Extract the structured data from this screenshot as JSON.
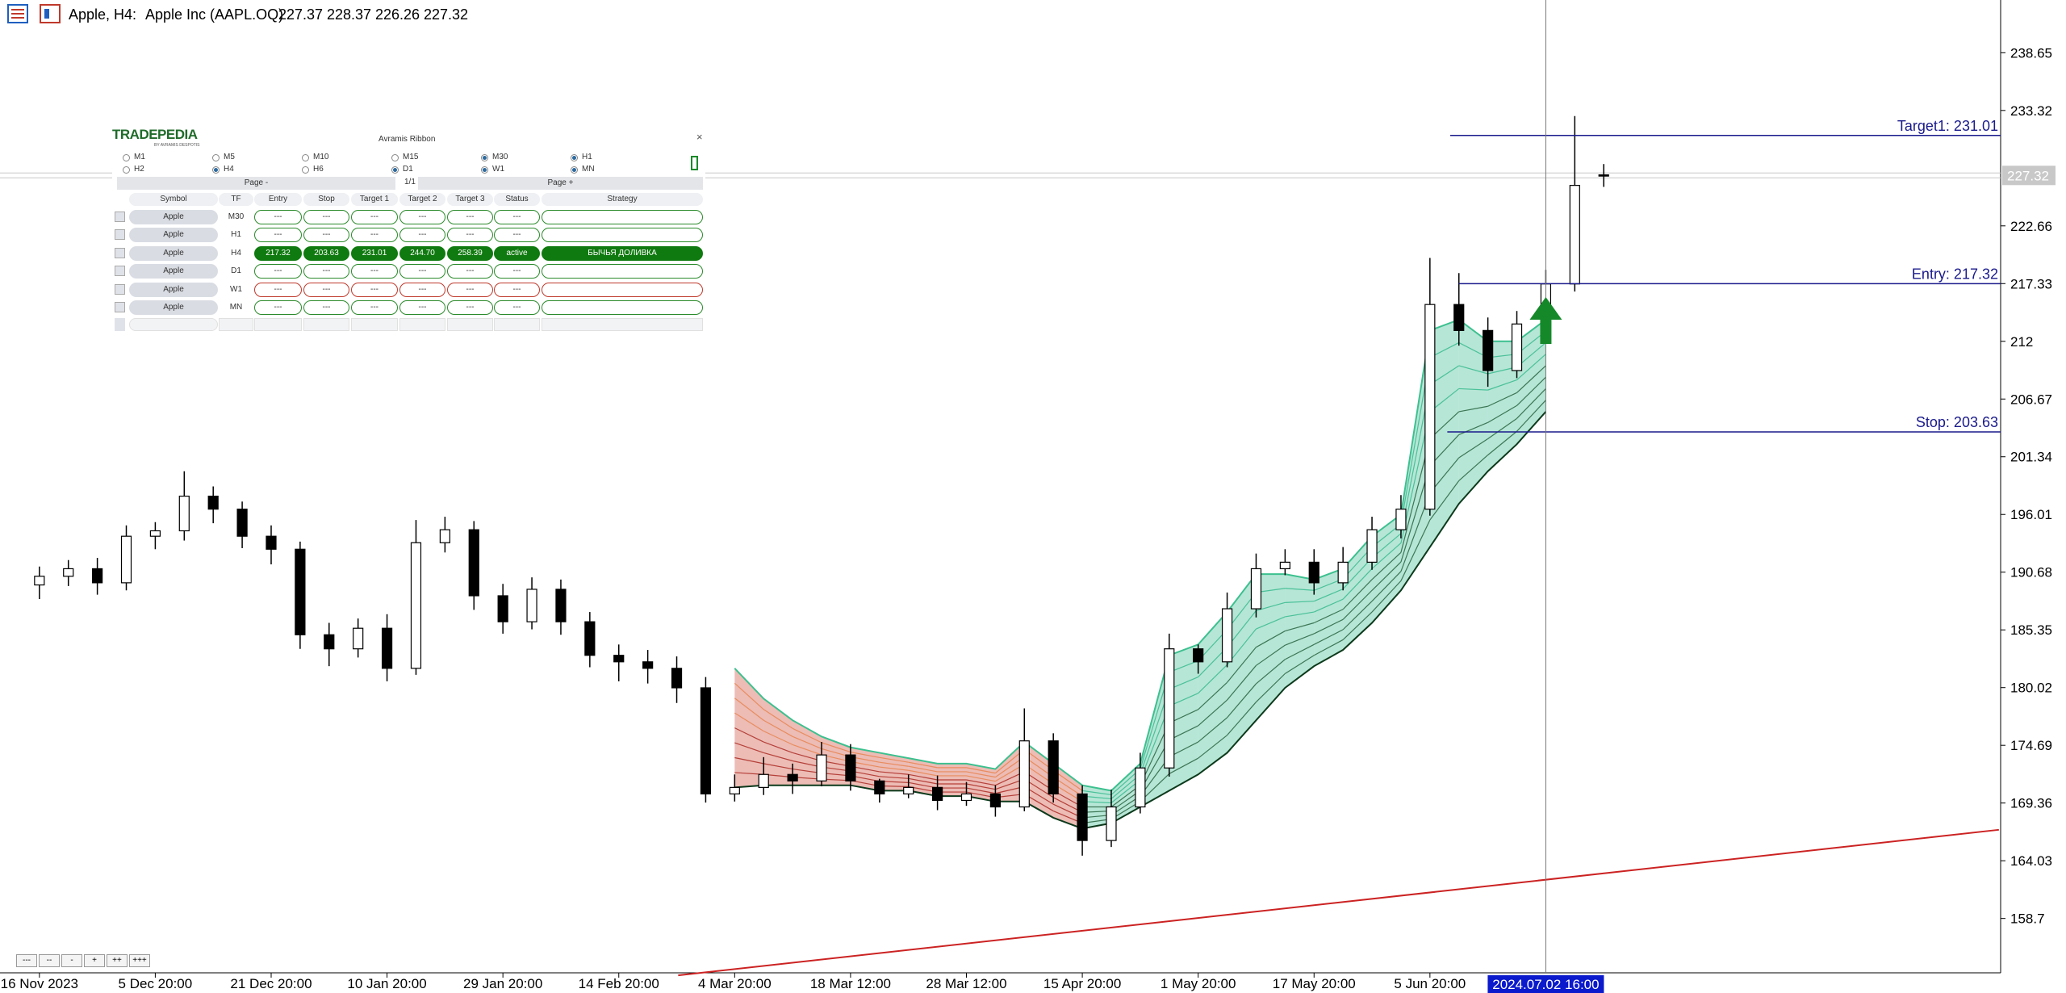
{
  "header": {
    "symbol": "Apple, H4:",
    "name": "Apple Inc (AAPL.OQ)",
    "ohlc": [
      "227.37",
      "228.37",
      "226.26",
      "227.32"
    ]
  },
  "zoom_buttons": [
    "---",
    "--",
    "-",
    "+",
    "++",
    "+++"
  ],
  "panel": {
    "logo": "TRADEPEDIA",
    "logo_sub": "BY AVRAMIS DESPOTIS",
    "title": "Avramis Ribbon",
    "close": "×",
    "timeframes": [
      {
        "label": "M1",
        "checked": false
      },
      {
        "label": "M5",
        "checked": false
      },
      {
        "label": "M10",
        "checked": false
      },
      {
        "label": "M15",
        "checked": false
      },
      {
        "label": "M30",
        "checked": true
      },
      {
        "label": "H1",
        "checked": true
      },
      {
        "label": "H2",
        "checked": false
      },
      {
        "label": "H4",
        "checked": true
      },
      {
        "label": "H6",
        "checked": false
      },
      {
        "label": "D1",
        "checked": true
      },
      {
        "label": "W1",
        "checked": true
      },
      {
        "label": "MN",
        "checked": true
      }
    ],
    "page_prev": "Page -",
    "page": "1/1",
    "page_next": "Page +",
    "columns": [
      "Symbol",
      "TF",
      "Entry",
      "Stop",
      "Target 1",
      "Target 2",
      "Target 3",
      "Status",
      "Strategy"
    ],
    "rows": [
      {
        "cells": [
          "Apple",
          "M30",
          "---",
          "---",
          "---",
          "---",
          "---",
          "---"
        ],
        "color": "#2a8a2a",
        "filled": false
      },
      {
        "cells": [
          "Apple",
          "H1",
          "---",
          "---",
          "---",
          "---",
          "---",
          "---"
        ],
        "color": "#2a8a2a",
        "filled": false
      },
      {
        "cells": [
          "Apple",
          "H4",
          "217.32",
          "203.63",
          "231.01",
          "244.70",
          "258.39",
          "active",
          "БЫЧЬЯ ДОЛИВКА"
        ],
        "color": "#0f7a0f",
        "filled": true
      },
      {
        "cells": [
          "Apple",
          "D1",
          "---",
          "---",
          "---",
          "---",
          "---",
          "---"
        ],
        "color": "#2a8a2a",
        "filled": false
      },
      {
        "cells": [
          "Apple",
          "W1",
          "---",
          "---",
          "---",
          "---",
          "---",
          "---"
        ],
        "color": "#c0392b",
        "filled": false
      },
      {
        "cells": [
          "Apple",
          "MN",
          "---",
          "---",
          "---",
          "---",
          "---",
          "---"
        ],
        "color": "#2a8a2a",
        "filled": false
      }
    ]
  },
  "chart_data": {
    "type": "candlestick",
    "x": [
      0,
      1,
      2,
      3,
      4,
      5,
      6,
      7,
      8,
      9,
      10,
      11,
      12,
      13,
      14,
      15,
      16,
      17,
      18,
      19,
      20,
      21,
      22,
      23,
      24,
      25,
      26,
      27,
      28,
      29,
      30,
      31,
      32,
      33,
      34,
      35,
      36,
      37,
      38,
      39,
      40,
      41,
      42,
      43,
      44,
      45,
      46,
      47,
      48,
      49,
      50,
      51,
      52,
      53,
      54
    ],
    "open": [
      189.5,
      190.3,
      191.0,
      189.7,
      194.0,
      194.5,
      197.7,
      196.5,
      194.0,
      192.8,
      184.9,
      183.6,
      185.5,
      181.8,
      193.4,
      194.6,
      188.5,
      186.1,
      189.1,
      186.1,
      183.0,
      182.4,
      181.8,
      180.0,
      170.2,
      170.8,
      172.0,
      171.4,
      173.8,
      171.4,
      170.2,
      170.8,
      169.6,
      170.2,
      169.0,
      175.1,
      170.2,
      165.9,
      169.0,
      172.6,
      183.6,
      182.4,
      187.3,
      191.0,
      191.6,
      189.7,
      191.6,
      194.6,
      196.5,
      215.4,
      213.0,
      209.3,
      213.6,
      217.3,
      227.37
    ],
    "high": [
      191.2,
      191.8,
      192.0,
      195.0,
      195.3,
      200.0,
      198.6,
      197.2,
      195.0,
      193.5,
      186.0,
      186.4,
      186.8,
      195.5,
      195.8,
      195.4,
      189.6,
      190.2,
      190.0,
      187.0,
      184.0,
      183.5,
      182.9,
      181.0,
      172.0,
      173.6,
      173.0,
      175.0,
      174.8,
      171.6,
      172.0,
      171.9,
      171.3,
      171.0,
      178.1,
      175.8,
      171.0,
      170.6,
      174.0,
      185.0,
      184.0,
      188.8,
      192.4,
      192.8,
      192.8,
      193.0,
      195.8,
      197.8,
      219.7,
      218.3,
      214.2,
      214.8,
      218.6,
      232.8,
      228.37
    ],
    "low": [
      188.2,
      189.4,
      188.6,
      189.0,
      192.8,
      193.6,
      195.2,
      192.9,
      191.4,
      183.6,
      182.0,
      182.8,
      180.6,
      181.2,
      192.5,
      187.2,
      185.0,
      185.4,
      184.9,
      181.9,
      180.6,
      180.4,
      178.6,
      169.4,
      169.5,
      170.1,
      170.2,
      170.9,
      170.5,
      169.4,
      169.8,
      168.7,
      169.1,
      168.1,
      168.6,
      169.4,
      164.5,
      165.3,
      168.4,
      171.8,
      181.3,
      181.9,
      186.5,
      190.4,
      188.6,
      189.0,
      190.9,
      193.8,
      195.9,
      211.6,
      207.8,
      208.6,
      212.0,
      216.6,
      226.26
    ],
    "close": [
      190.3,
      191.0,
      189.7,
      194.0,
      194.5,
      197.7,
      196.5,
      194.0,
      192.8,
      184.9,
      183.6,
      185.5,
      181.8,
      193.4,
      194.6,
      188.5,
      186.1,
      189.1,
      186.1,
      183.0,
      182.4,
      181.8,
      180.0,
      170.2,
      170.8,
      172.0,
      171.4,
      173.8,
      171.4,
      170.2,
      170.8,
      169.6,
      170.2,
      169.0,
      175.1,
      170.2,
      165.9,
      169.0,
      172.6,
      183.6,
      182.4,
      187.3,
      191.0,
      191.6,
      189.7,
      191.6,
      194.6,
      196.5,
      215.4,
      213.0,
      209.3,
      213.6,
      217.3,
      226.4,
      227.32
    ],
    "ribbon": {
      "upper": [
        null,
        null,
        null,
        null,
        null,
        null,
        null,
        null,
        null,
        null,
        null,
        null,
        null,
        null,
        null,
        null,
        null,
        null,
        null,
        null,
        null,
        null,
        null,
        null,
        181.8,
        179,
        177,
        175.5,
        174.5,
        174,
        173.5,
        173,
        173,
        172.5,
        175,
        173,
        171,
        170.5,
        173,
        183,
        184,
        187,
        190.5,
        190.5,
        190,
        191,
        194,
        196,
        213,
        214,
        212,
        212,
        214,
        null,
        null
      ],
      "lower": [
        null,
        null,
        null,
        null,
        null,
        null,
        null,
        null,
        null,
        null,
        null,
        null,
        null,
        null,
        null,
        null,
        null,
        null,
        null,
        null,
        null,
        null,
        null,
        null,
        170.8,
        171,
        171,
        171,
        171,
        170.5,
        170.5,
        170,
        170,
        169.5,
        169.5,
        168,
        167,
        167.5,
        169,
        170.5,
        172,
        174,
        177,
        180,
        182,
        183.5,
        186,
        189,
        193,
        197,
        200,
        202.5,
        205.5,
        null,
        null
      ],
      "colors": [
        "#c8402a",
        "#2fb88a"
      ]
    },
    "xlim": [
      -1.36,
      67.7
    ],
    "ylim": [
      153.68,
      243.52
    ],
    "yticks": [
      158.7,
      164.03,
      169.36,
      174.69,
      180.02,
      185.35,
      190.68,
      196.01,
      201.34,
      206.67,
      212.0,
      217.33,
      222.66,
      233.32,
      238.65
    ],
    "xticks": [
      {
        "value": 0,
        "label": "16 Nov 2023"
      },
      {
        "value": 4,
        "label": "5 Dec 20:00"
      },
      {
        "value": 8,
        "label": "21 Dec 20:00"
      },
      {
        "value": 12,
        "label": "10 Jan 20:00"
      },
      {
        "value": 16,
        "label": "29 Jan 20:00"
      },
      {
        "value": 20,
        "label": "14 Feb 20:00"
      },
      {
        "value": 24,
        "label": "4 Mar 20:00"
      },
      {
        "value": 28,
        "label": "18 Mar 12:00"
      },
      {
        "value": 32,
        "label": "28 Mar 12:00"
      },
      {
        "value": 36,
        "label": "15 Apr 20:00"
      },
      {
        "value": 40,
        "label": "1 May 20:00"
      },
      {
        "value": 44,
        "label": "17 May 20:00"
      },
      {
        "value": 48,
        "label": "5 Jun 20:00"
      }
    ],
    "cursor": {
      "value": 52,
      "label": "2024.07.02 16:00"
    },
    "current_price": 227.32,
    "trendline": {
      "x": [
        22.05,
        67.64
      ],
      "y": [
        153.45,
        166.89
      ],
      "color": "#cc2222"
    },
    "levels": [
      {
        "label": "Target1: 231.01",
        "value": 231.01,
        "x_start": 48.7,
        "color": "#1a1a8c"
      },
      {
        "label": "Entry: 217.32",
        "value": 217.32,
        "x_start": 49,
        "color": "#1a1a8c"
      },
      {
        "label": "Stop: 203.63",
        "value": 203.63,
        "x_start": 48.6,
        "color": "#1a1a8c"
      }
    ],
    "signal": {
      "x": 52,
      "y": 214,
      "color": "#15892a"
    }
  }
}
